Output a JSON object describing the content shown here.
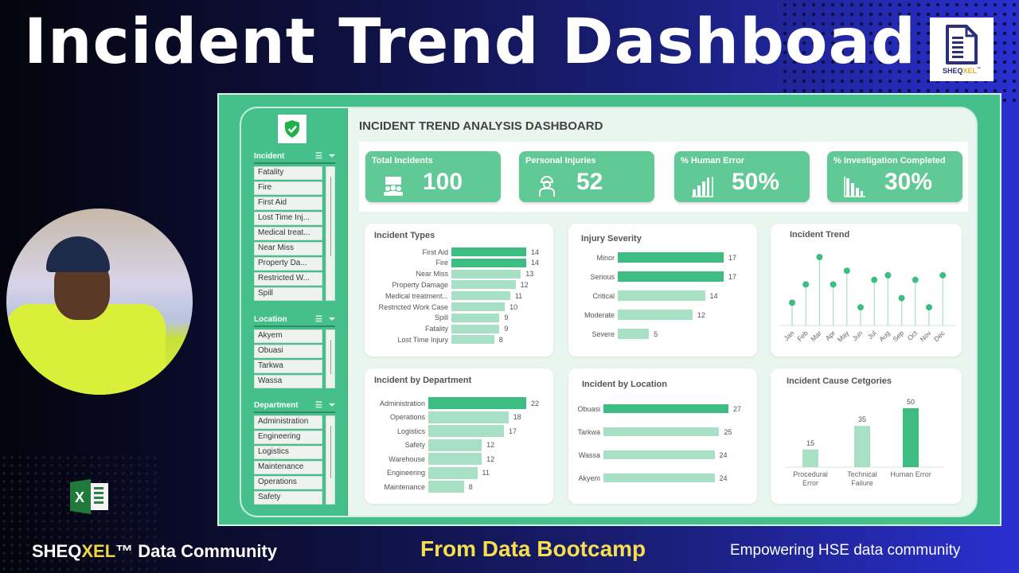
{
  "banner": {
    "title": "Incident Trend Dashboad",
    "logo_text": "SHEQ",
    "logo_text_accent": "XEL",
    "logo_tm": "™"
  },
  "footer": {
    "left_prefix": "SHEQ",
    "left_accent": "XEL",
    "left_suffix": "™ Data Community",
    "middle": "From Data Bootcamp",
    "right": "Empowering HSE data community"
  },
  "colors": {
    "accent_dark": "#3ebd82",
    "accent_light": "#a8e0c6",
    "frame": "#45c08a",
    "kpi": "#61c995"
  },
  "dashboard": {
    "title": "INCIDENT TREND ANALYSIS DASHBOARD",
    "slicers": [
      {
        "label": "Incident",
        "items": [
          "Fatality",
          "Fire",
          "First Aid",
          "Lost Time Inj...",
          "Medical treat...",
          "Near Miss",
          "Property Da...",
          "Restricted W...",
          "Spill"
        ]
      },
      {
        "label": "Location",
        "items": [
          "Akyem",
          "Obuasi",
          "Tarkwa",
          "Wassa"
        ]
      },
      {
        "label": "Department",
        "items": [
          "Administration",
          "Engineering",
          "Logistics",
          "Maintenance",
          "Operations",
          "Safety"
        ]
      }
    ],
    "kpis": [
      {
        "label": "Total Incidents",
        "value": "100",
        "icon": "people-board-icon"
      },
      {
        "label": "Personal Injuries",
        "value": "52",
        "icon": "worker-icon"
      },
      {
        "label": "% Human Error",
        "value": "50%",
        "icon": "bar-growth-icon"
      },
      {
        "label": "% Investigation Completed",
        "value": "30%",
        "icon": "bar-decline-icon"
      }
    ]
  },
  "chart_data": [
    {
      "type": "bar",
      "orientation": "horizontal",
      "title": "Incident Types",
      "categories": [
        "First Aid",
        "Fire",
        "Near Miss",
        "Property Damage",
        "Medical treatment...",
        "Restricted Work Case",
        "Spill",
        "Fatality",
        "Lost Time Injury"
      ],
      "values": [
        14,
        14,
        13,
        12,
        11,
        10,
        9,
        9,
        8
      ],
      "highlight": [
        true,
        true,
        false,
        false,
        false,
        false,
        false,
        false,
        false
      ]
    },
    {
      "type": "bar",
      "orientation": "horizontal",
      "title": "Injury Severity",
      "categories": [
        "Minor",
        "Serious",
        "Critical",
        "Moderate",
        "Severe"
      ],
      "values": [
        17,
        17,
        14,
        12,
        5
      ],
      "highlight": [
        true,
        true,
        false,
        false,
        false
      ]
    },
    {
      "type": "line",
      "style": "lollipop",
      "title": "Incident Trend",
      "categories": [
        "Jan",
        "Feb",
        "Mar",
        "Apr",
        "May",
        "Jun",
        "Jul",
        "Aug",
        "Sep",
        "Oct",
        "Nov",
        "Dec"
      ],
      "values": [
        5,
        9,
        15,
        9,
        12,
        4,
        10,
        11,
        6,
        10,
        4,
        11
      ],
      "grid": false
    },
    {
      "type": "bar",
      "orientation": "horizontal",
      "title": "Incident by Department",
      "categories": [
        "Administration",
        "Operations",
        "Logistics",
        "Safety",
        "Warehouse",
        "Engineering",
        "Maintenance"
      ],
      "values": [
        22,
        18,
        17,
        12,
        12,
        11,
        8
      ],
      "highlight": [
        true,
        false,
        false,
        false,
        false,
        false,
        false
      ]
    },
    {
      "type": "bar",
      "orientation": "horizontal",
      "title": "Incident by Location",
      "categories": [
        "Obuasi",
        "Tarkwa",
        "Wassa",
        "Akyem"
      ],
      "values": [
        27,
        25,
        24,
        24
      ],
      "highlight": [
        true,
        false,
        false,
        false
      ]
    },
    {
      "type": "bar",
      "orientation": "vertical",
      "title": "Incident Cause Cetgories",
      "categories": [
        "Procedural Error",
        "Technical Failure",
        "Human Error"
      ],
      "values": [
        15,
        35,
        50
      ],
      "highlight": [
        false,
        false,
        true
      ]
    }
  ]
}
